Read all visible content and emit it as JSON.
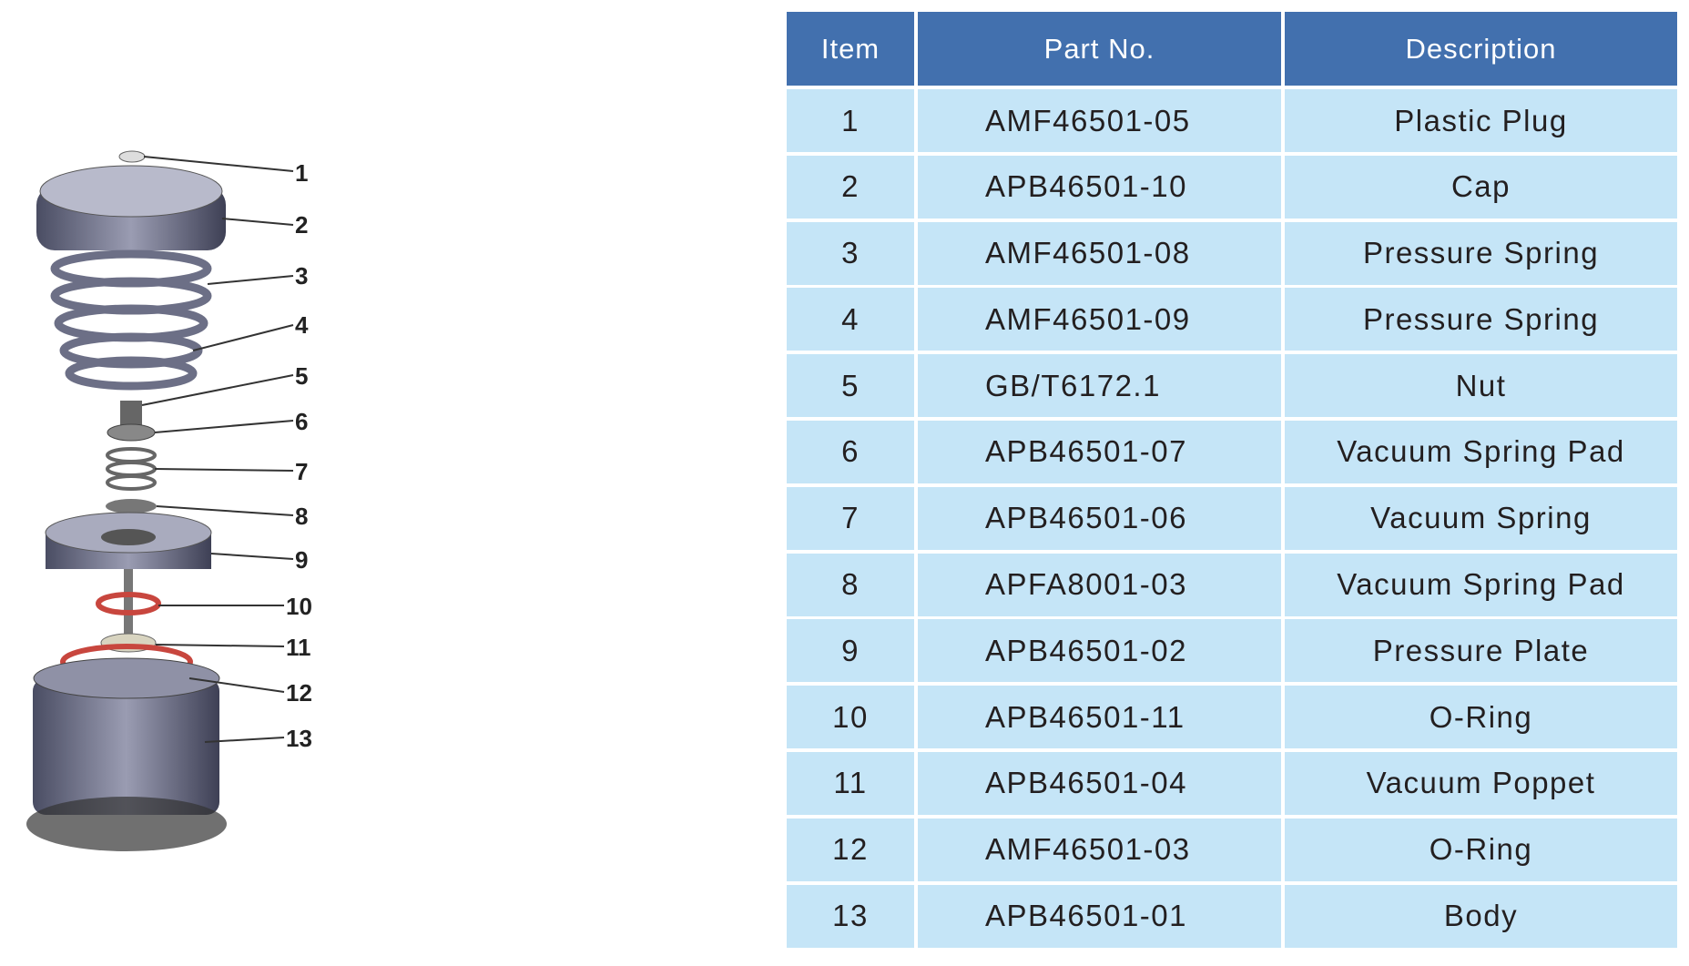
{
  "table": {
    "headers": [
      "Item",
      "Part No.",
      "Description"
    ],
    "rows": [
      {
        "item": "1",
        "part_no": "AMF46501-05",
        "description": "Plastic Plug"
      },
      {
        "item": "2",
        "part_no": "APB46501-10",
        "description": "Cap"
      },
      {
        "item": "3",
        "part_no": "AMF46501-08",
        "description": "Pressure Spring"
      },
      {
        "item": "4",
        "part_no": "AMF46501-09",
        "description": "Pressure Spring"
      },
      {
        "item": "5",
        "part_no": "GB/T6172.1",
        "description": "Nut"
      },
      {
        "item": "6",
        "part_no": "APB46501-07",
        "description": "Vacuum Spring Pad"
      },
      {
        "item": "7",
        "part_no": "APB46501-06",
        "description": "Vacuum Spring"
      },
      {
        "item": "8",
        "part_no": "APFA8001-03",
        "description": "Vacuum Spring Pad"
      },
      {
        "item": "9",
        "part_no": "APB46501-02",
        "description": "Pressure Plate"
      },
      {
        "item": "10",
        "part_no": "APB46501-11",
        "description": "O-Ring"
      },
      {
        "item": "11",
        "part_no": "APB46501-04",
        "description": "Vacuum Poppet"
      },
      {
        "item": "12",
        "part_no": "AMF46501-03",
        "description": "O-Ring"
      },
      {
        "item": "13",
        "part_no": "APB46501-01",
        "description": "Body"
      }
    ]
  },
  "diagram": {
    "callouts": [
      "1",
      "2",
      "3",
      "4",
      "5",
      "6",
      "7",
      "8",
      "9",
      "10",
      "11",
      "12",
      "13"
    ]
  },
  "colors": {
    "header_bg": "#4270AE",
    "row_bg": "#C5E5F7",
    "oring": "#C8463E"
  }
}
